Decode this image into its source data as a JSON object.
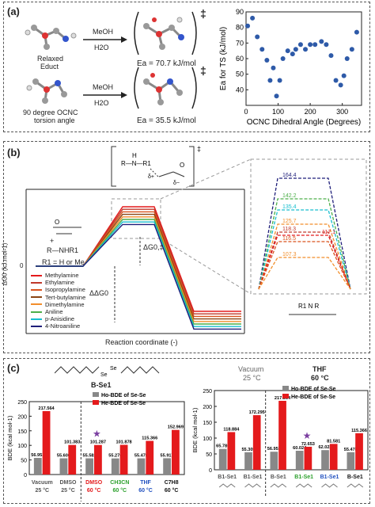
{
  "panel_a": {
    "label": "(a)",
    "relaxed_label": [
      "Relaxed",
      "Educt"
    ],
    "torsion_label": [
      "90 degree OCNC",
      "torsion angle"
    ],
    "solvent_top": [
      "MeOH",
      "H2O"
    ],
    "solvent_bottom": [
      "MeOH",
      "H2O"
    ],
    "ts_symbol": "‡",
    "ea_top": "Ea = 70.7 kJ/mol",
    "ea_bottom": "Ea = 35.5 kJ/mol"
  },
  "panel_b": {
    "label": "(b)",
    "reagent": "R—NHR1",
    "r1_note": "R1 = H or Me",
    "plus": "+",
    "ylabel": "ΔG0 (kJ.mol-1)",
    "xlabel": "Reaction coordinate (-)",
    "dg_ts_label": "ΔG0,‡",
    "dg_label": "ΔΔG0",
    "zero_tick": "0",
    "legend": [
      {
        "name": "Methylamine",
        "color": "#e41a1c"
      },
      {
        "name": "Ethylamine",
        "color": "#c0392b"
      },
      {
        "name": "Isopropylamine",
        "color": "#d9531e"
      },
      {
        "name": "Tert-butylamine",
        "color": "#8b4513"
      },
      {
        "name": "Dimethylamine",
        "color": "#f28e2b"
      },
      {
        "name": "Aniline",
        "color": "#4daf4a"
      },
      {
        "name": "p-Anisidine",
        "color": "#17becf"
      },
      {
        "name": "4-Nitroaniline",
        "color": "#1f1f7a"
      }
    ],
    "zoom_values": [
      {
        "v": "164.4",
        "color": "#1f1f7a"
      },
      {
        "v": "142.2",
        "color": "#4daf4a"
      },
      {
        "v": "135.4",
        "color": "#17becf"
      },
      {
        "v": "125.7",
        "color": "#f28e2b"
      },
      {
        "v": "118.3",
        "color": "#c0392b"
      },
      {
        "v": "117.1",
        "color": "#e41a1c"
      },
      {
        "v": "116.5",
        "color": "#d9531e"
      },
      {
        "v": "107.3",
        "color": "#f28e2b"
      }
    ]
  },
  "panel_c": {
    "label": "(c)",
    "molecule_label": "B-Se1",
    "legend_ho": "Ho-BDE of Se-Se",
    "legend_he": "He-BDE of Se-Se",
    "ylabel": "BDE (kcal mol-1)",
    "left_conditions": [
      {
        "solvent": "Vacuum",
        "temp": "25 °C",
        "color": "#555555"
      },
      {
        "solvent": "DMSO",
        "temp": "25 °C",
        "color": "#555555"
      },
      {
        "solvent": "DMSO",
        "temp": "60 °C",
        "color": "#e41a1c"
      },
      {
        "solvent": "CH3CN",
        "temp": "60 °C",
        "color": "#2ca02c"
      },
      {
        "solvent": "THF",
        "temp": "60 °C",
        "color": "#1f4fbf"
      },
      {
        "solvent": "C7H8",
        "temp": "60 °C",
        "color": "#111111"
      }
    ],
    "right_head_left": [
      "Vacuum",
      "25 °C"
    ],
    "right_head_right": [
      "THF",
      "60 °C"
    ],
    "right_xlabels": [
      {
        "t": "B1-Se1",
        "color": "#555555"
      },
      {
        "t": "B1-Se1",
        "color": "#555555"
      },
      {
        "t": "B-Se1",
        "color": "#555555"
      },
      {
        "t": "B1-Se1",
        "color": "#2ca02c"
      },
      {
        "t": "B1-Se1",
        "color": "#1f4fbf"
      },
      {
        "t": "B-Se1",
        "color": "#111111"
      }
    ],
    "star": "★"
  },
  "chart_data": [
    {
      "type": "scatter",
      "title": "",
      "xlabel": "OCNC Dihedral Angle (Degrees)",
      "ylabel": "Ea for TS (kJ/mol)",
      "xlim": [
        0,
        360
      ],
      "ylim": [
        30,
        90
      ],
      "xticks": [
        0,
        100,
        200,
        300
      ],
      "yticks": [
        40,
        50,
        60,
        70,
        80,
        90
      ],
      "x": [
        5,
        20,
        35,
        50,
        65,
        75,
        85,
        95,
        105,
        115,
        130,
        145,
        155,
        170,
        185,
        200,
        215,
        235,
        250,
        265,
        280,
        295,
        305,
        315,
        330,
        345
      ],
      "y": [
        81,
        86,
        74,
        66,
        59,
        46,
        54,
        36,
        46,
        60,
        65,
        63,
        66,
        69,
        66,
        69,
        69,
        71,
        69,
        62,
        46,
        43,
        49,
        60,
        66,
        77
      ],
      "grid": false
    },
    {
      "type": "bar",
      "title": "",
      "ylabel": "BDE (kcal mol-1)",
      "ylim": [
        0,
        250
      ],
      "yticks": [
        0,
        50,
        100,
        150,
        200,
        250
      ],
      "categories": [
        "Vacuum 25 °C",
        "DMSO 25 °C",
        "DMSO 60 °C",
        "CH3CN 60 °C",
        "THF 60 °C",
        "C7H8 60 °C"
      ],
      "series": [
        {
          "name": "Ho-BDE of Se-Se",
          "color": "#888888",
          "values": [
            56.953,
            55.606,
            55.582,
            55.276,
            55.478,
            55.917
          ]
        },
        {
          "name": "He-BDE of Se-Se",
          "color": "#e41a1c",
          "values": [
            217.564,
            101.383,
            101.287,
            101.878,
            115.366,
            152.969
          ]
        }
      ],
      "data_labels": [
        "56.953",
        "217.564",
        "55.606",
        "101.383",
        "55.582",
        "101.287",
        "55.276",
        "101.878",
        "55.478",
        "115.366",
        "55.917",
        "152.969"
      ]
    },
    {
      "type": "bar",
      "title": "",
      "ylabel": "BDE (kcal mol-1)",
      "ylim": [
        0,
        250
      ],
      "yticks": [
        0,
        50,
        100,
        150,
        200,
        250
      ],
      "categories": [
        "B1-Se1",
        "B1-Se1",
        "B-Se1",
        "B1-Se1",
        "B1-Se1",
        "B-Se1"
      ],
      "series": [
        {
          "name": "Ho-BDE of Se-Se",
          "color": "#888888",
          "values": [
            65.78,
            55.305,
            56.953,
            60.024,
            62.023,
            55.478
          ]
        },
        {
          "name": "He-BDE of Se-Se",
          "color": "#e41a1c",
          "values": [
            118.884,
            172.295,
            217.564,
            72.653,
            81.581,
            115.366
          ]
        }
      ],
      "data_labels": [
        "65.780",
        "118.884",
        "55.305",
        "172.295",
        "56.953",
        "217.564",
        "60.024",
        "72.653",
        "62.023",
        "81.581",
        "55.478",
        "115.366"
      ]
    }
  ]
}
